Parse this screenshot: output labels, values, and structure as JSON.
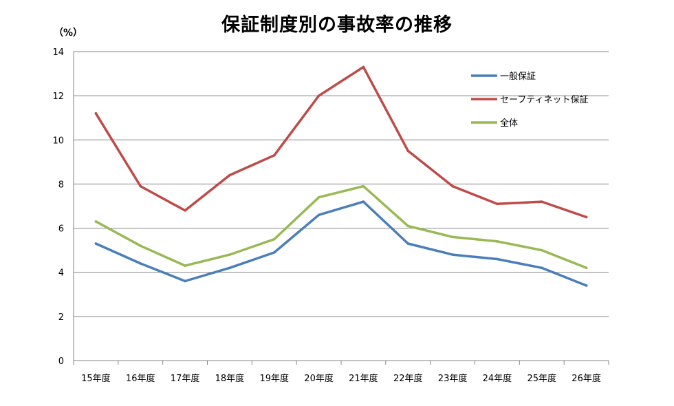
{
  "chart_data": {
    "type": "line",
    "title": "保証制度別の事故率の推移",
    "unit_label": "（%）",
    "categories": [
      "15年度",
      "16年度",
      "17年度",
      "18年度",
      "19年度",
      "20年度",
      "21年度",
      "22年度",
      "23年度",
      "24年度",
      "25年度",
      "26年度"
    ],
    "ylim": [
      0,
      14
    ],
    "yticks": [
      0,
      2,
      4,
      6,
      8,
      10,
      12,
      14
    ],
    "grid": true,
    "legend_position": "top-right",
    "series": [
      {
        "name": "一般保証",
        "color": "#4a7ebb",
        "values": [
          5.3,
          4.4,
          3.6,
          4.2,
          4.9,
          6.6,
          7.2,
          5.3,
          4.8,
          4.6,
          4.2,
          3.4
        ]
      },
      {
        "name": "セーフティネット保証",
        "color": "#be4b48",
        "values": [
          11.2,
          7.9,
          6.8,
          8.4,
          9.3,
          12.0,
          13.3,
          9.5,
          7.9,
          7.1,
          7.2,
          6.5
        ]
      },
      {
        "name": "全体",
        "color": "#98b954",
        "values": [
          6.3,
          5.2,
          4.3,
          4.8,
          5.5,
          7.4,
          7.9,
          6.1,
          5.6,
          5.4,
          5.0,
          4.2
        ]
      }
    ]
  }
}
